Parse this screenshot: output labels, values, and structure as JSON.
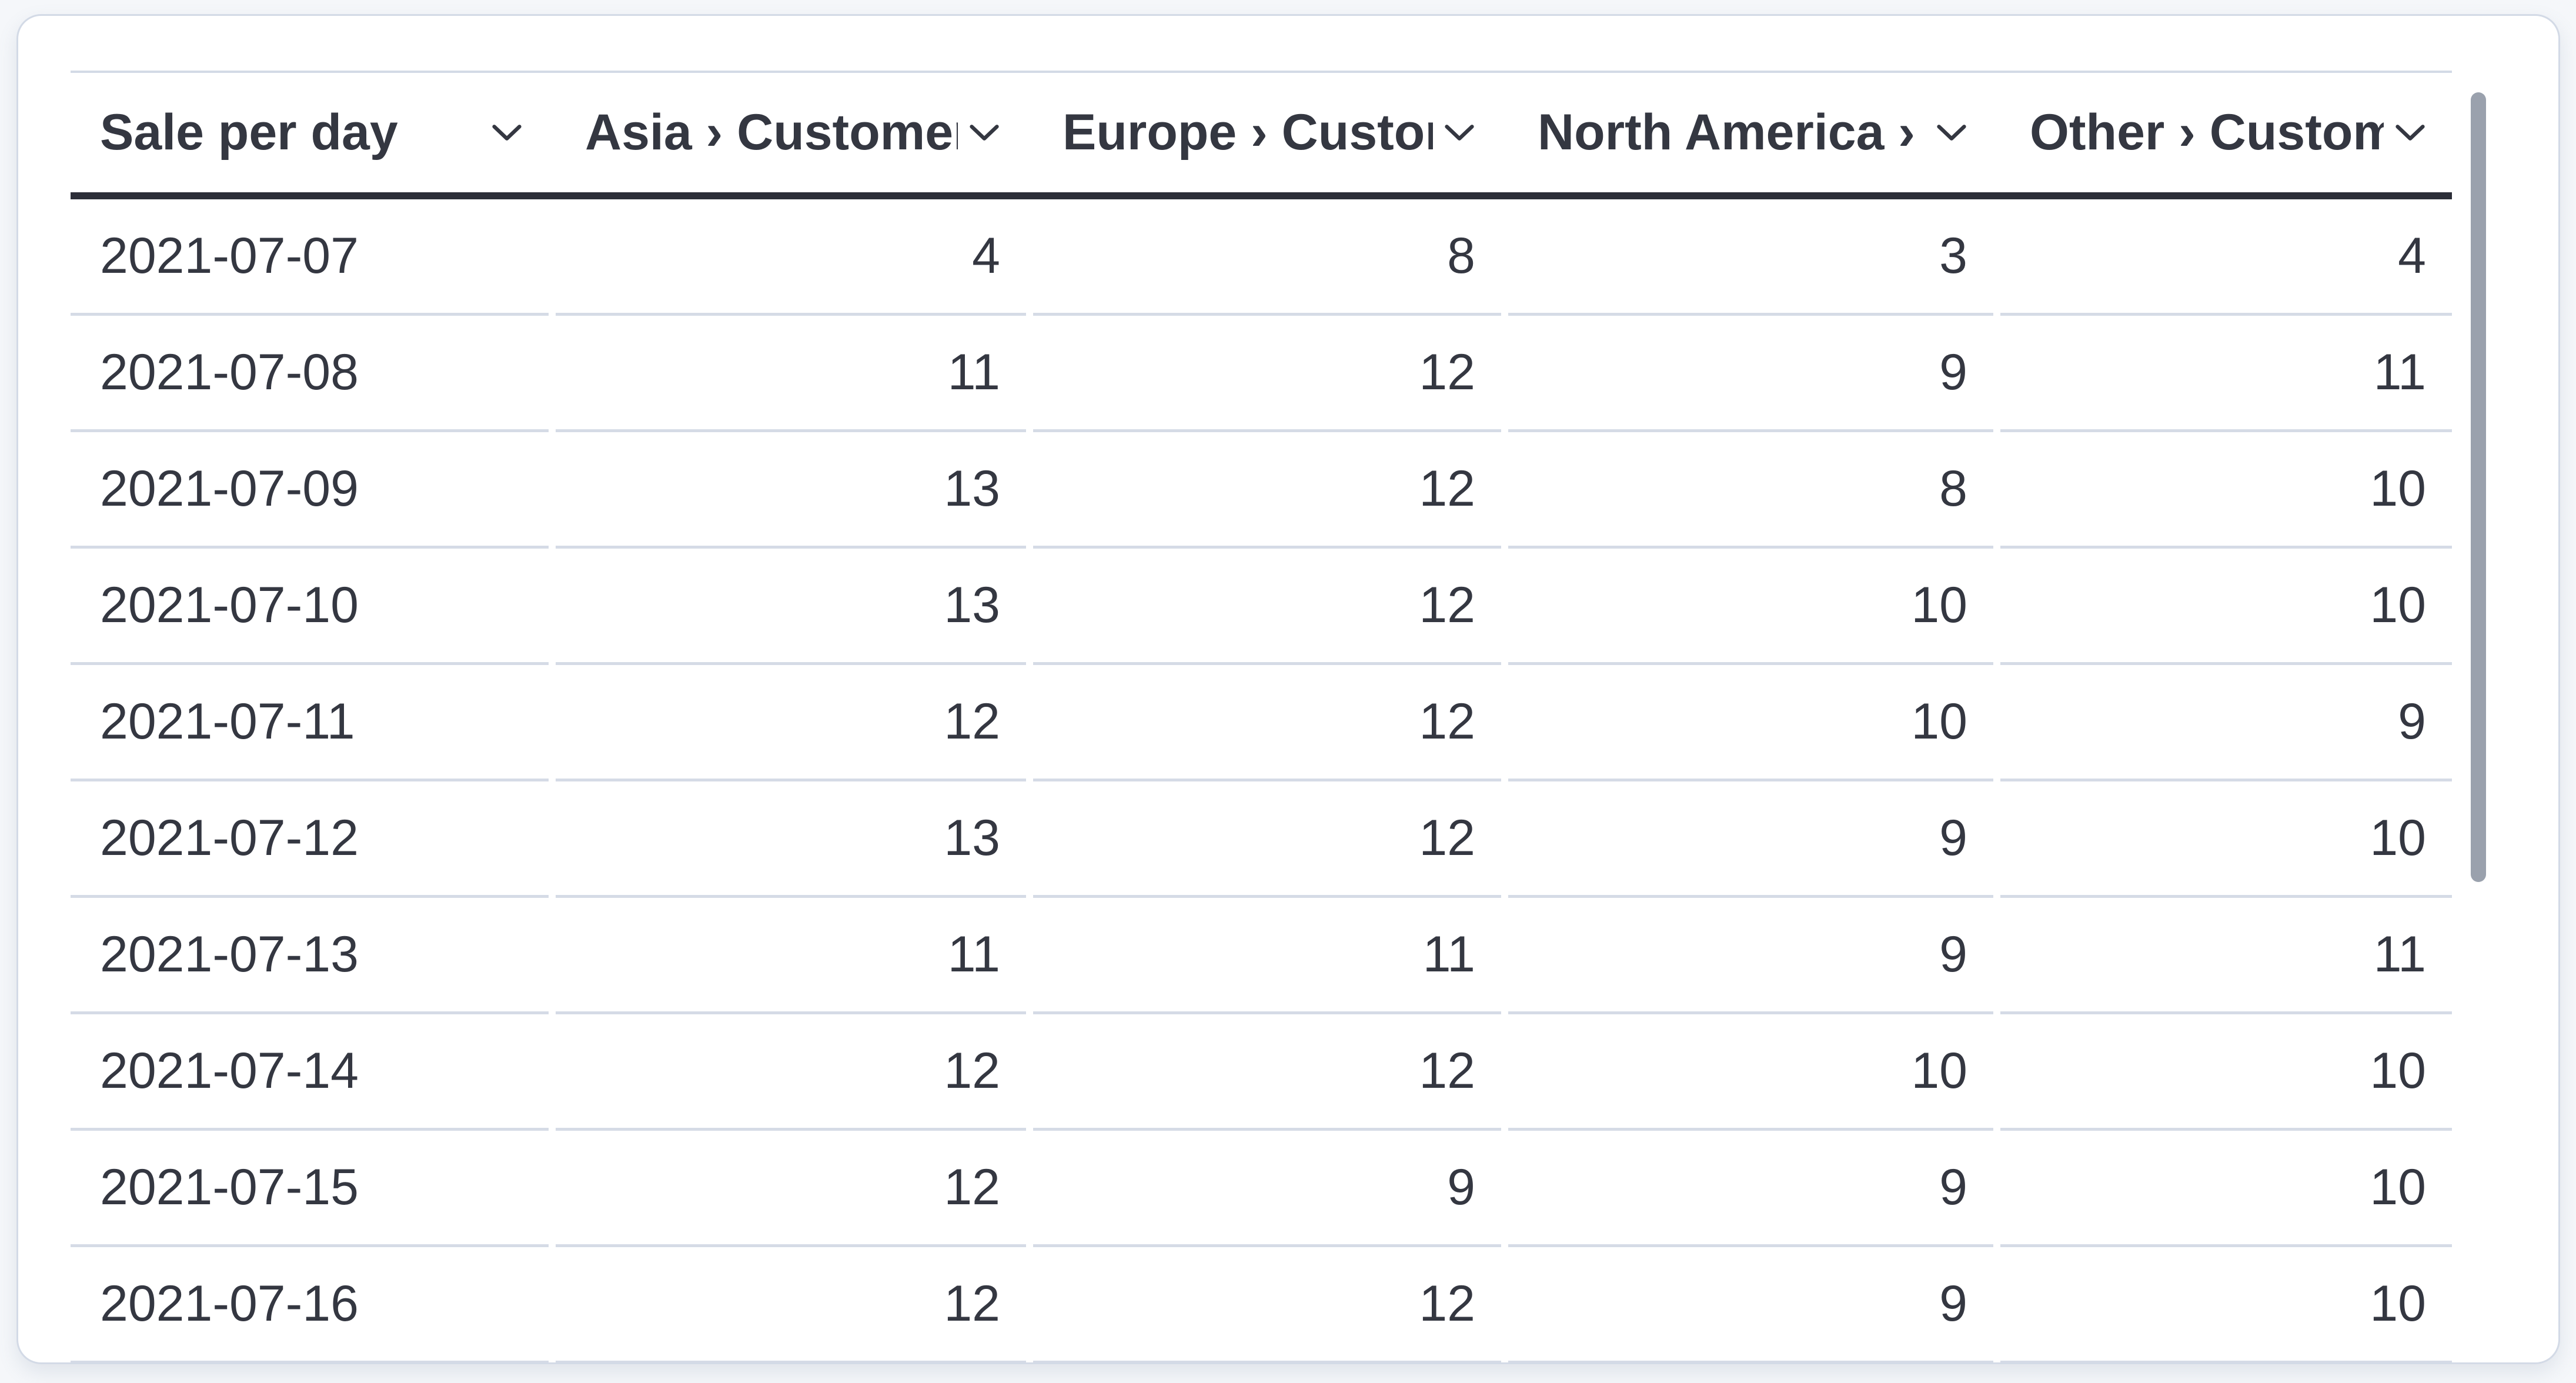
{
  "table": {
    "title_column": "Sale per day",
    "columns": [
      {
        "key": "date",
        "label": "Sale per day",
        "align": "left",
        "sortable": true
      },
      {
        "key": "asia",
        "label": "Asia › Customers",
        "align": "right",
        "sortable": true
      },
      {
        "key": "europe",
        "label": "Europe › Customers",
        "align": "right",
        "sortable": true
      },
      {
        "key": "north_america",
        "label": "North America › Customers",
        "align": "right",
        "sortable": true
      },
      {
        "key": "other",
        "label": "Other › Customers",
        "align": "right",
        "sortable": true
      }
    ],
    "sort_icon": "chevron-down-icon",
    "rows": [
      {
        "date": "2021-07-07",
        "values": [
          "4",
          "8",
          "3",
          "4"
        ]
      },
      {
        "date": "2021-07-08",
        "values": [
          "11",
          "12",
          "9",
          "11"
        ]
      },
      {
        "date": "2021-07-09",
        "values": [
          "13",
          "12",
          "8",
          "10"
        ]
      },
      {
        "date": "2021-07-10",
        "values": [
          "13",
          "12",
          "10",
          "10"
        ]
      },
      {
        "date": "2021-07-11",
        "values": [
          "12",
          "12",
          "10",
          "9"
        ]
      },
      {
        "date": "2021-07-12",
        "values": [
          "13",
          "12",
          "9",
          "10"
        ]
      },
      {
        "date": "2021-07-13",
        "values": [
          "11",
          "11",
          "9",
          "11"
        ]
      },
      {
        "date": "2021-07-14",
        "values": [
          "12",
          "12",
          "10",
          "10"
        ]
      },
      {
        "date": "2021-07-15",
        "values": [
          "12",
          "9",
          "9",
          "10"
        ]
      },
      {
        "date": "2021-07-16",
        "values": [
          "12",
          "12",
          "9",
          "10"
        ]
      }
    ]
  },
  "scrollbar": {
    "visible": true
  },
  "colors": {
    "page_background": "#f5f7fa",
    "card_background": "#ffffff",
    "card_border": "#d3dae6",
    "row_separator": "#d5dbe6",
    "header_underline": "#2c2e38",
    "text": "#343741",
    "scrollbar_thumb": "#9aa1ad"
  }
}
